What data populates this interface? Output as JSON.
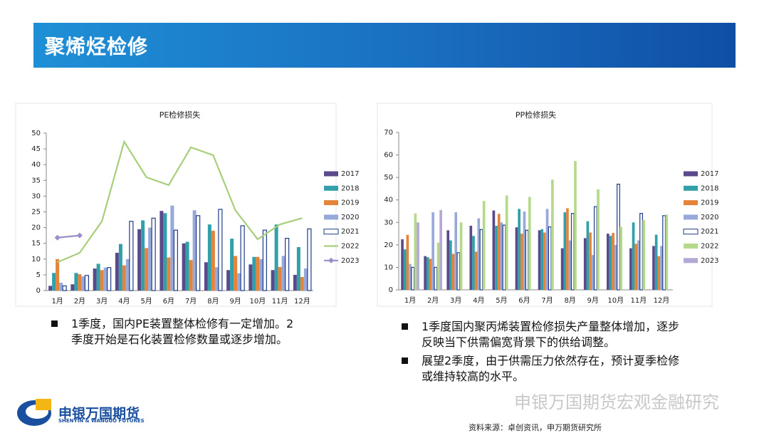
{
  "header": {
    "title": "聚烯烃检修"
  },
  "chart_data": [
    {
      "type": "bar",
      "title": "PE检修损失",
      "categories": [
        "1月",
        "2月",
        "3月",
        "4月",
        "5月",
        "6月",
        "7月",
        "8月",
        "9月",
        "10月",
        "11月",
        "12月"
      ],
      "ylim": [
        0,
        50
      ],
      "yticks": [
        0,
        5,
        10,
        15,
        20,
        25,
        30,
        35,
        40,
        45,
        50
      ],
      "legend": "right",
      "series": [
        {
          "name": "2017",
          "color": "#5b4a8b",
          "values": [
            1.5,
            2,
            7,
            12,
            19.5,
            25.3,
            15,
            9,
            6.5,
            8.3,
            6.5,
            5
          ]
        },
        {
          "name": "2018",
          "color": "#31a0a8",
          "values": [
            5.6,
            5.6,
            8.5,
            14.8,
            22.3,
            24.6,
            15.5,
            21,
            16.5,
            10.7,
            21,
            13.8
          ]
        },
        {
          "name": "2019",
          "color": "#e3843a",
          "values": [
            10,
            5.2,
            6.5,
            8,
            13.5,
            10.5,
            9.7,
            19,
            11,
            10.7,
            7.5,
            4.3
          ]
        },
        {
          "name": "2020",
          "color": "#98a9d9",
          "values": [
            2.5,
            4.5,
            7.3,
            10,
            20,
            27,
            25.5,
            7.4,
            5.5,
            10,
            11,
            7
          ]
        },
        {
          "name": "2021",
          "color": "#1f3c88",
          "fill": "#ffffff",
          "values": [
            1.5,
            4.8,
            7.3,
            22,
            23,
            19.2,
            23.8,
            25.8,
            20.6,
            19.2,
            16.6,
            19.6
          ]
        },
        {
          "name": "2022",
          "color": "#a7cf7a",
          "type": "line",
          "values": [
            9,
            12,
            22,
            47.3,
            36,
            33.5,
            45.5,
            43,
            25.5,
            16.3,
            21,
            23
          ]
        },
        {
          "name": "2023",
          "color": "#9b8ec7",
          "type": "line",
          "marker": "diamond",
          "values": [
            16.8,
            17.5,
            null,
            null,
            null,
            null,
            null,
            null,
            null,
            null,
            null,
            null
          ]
        }
      ]
    },
    {
      "type": "bar",
      "title": "PP检修损失",
      "categories": [
        "1月",
        "2月",
        "3月",
        "4月",
        "5月",
        "6月",
        "7月",
        "8月",
        "9月",
        "10月",
        "11月",
        "12月"
      ],
      "ylim": [
        0,
        70
      ],
      "yticks": [
        0,
        10,
        20,
        30,
        40,
        50,
        60,
        70
      ],
      "legend": "right",
      "series": [
        {
          "name": "2017",
          "color": "#5b4a8b",
          "values": [
            22.5,
            15,
            26.5,
            28.5,
            35.3,
            27.8,
            26.5,
            18.5,
            23,
            25,
            18.5,
            19.5
          ]
        },
        {
          "name": "2018",
          "color": "#31a0a8",
          "values": [
            18,
            14.5,
            22,
            24,
            28.5,
            36,
            27,
            34.5,
            30.5,
            24,
            30,
            24.5
          ]
        },
        {
          "name": "2019",
          "color": "#e3843a",
          "values": [
            24.5,
            13.8,
            16,
            17,
            33.8,
            25,
            25.5,
            36.3,
            25.5,
            25.3,
            20.5,
            15
          ]
        },
        {
          "name": "2020",
          "color": "#98a9d9",
          "values": [
            11.5,
            34.5,
            34.5,
            31.8,
            30,
            34.8,
            36,
            22,
            15.5,
            20,
            22,
            19.5
          ]
        },
        {
          "name": "2021",
          "color": "#1f3c88",
          "fill": "#ffffff",
          "values": [
            10,
            10,
            16.5,
            26.8,
            28.8,
            26.5,
            28,
            34,
            37,
            47,
            34,
            33
          ]
        },
        {
          "name": "2022",
          "color": "#b5d98a",
          "values": [
            34,
            21,
            30,
            39.5,
            42,
            41.3,
            49,
            57.3,
            44.7,
            28,
            31,
            33.5
          ]
        },
        {
          "name": "2023",
          "color": "#b3a8d6",
          "values": [
            30,
            35.5,
            null,
            null,
            null,
            null,
            null,
            null,
            null,
            null,
            null,
            null
          ]
        }
      ]
    }
  ],
  "notes_left": [
    "1季度，国内PE装置整体检修有一定增加。2季度开始是石化装置检修数量或逐步增加。"
  ],
  "notes_right": [
    "1季度国内聚丙烯装置检修损失产量整体增加，逐步反映当下供需偏宽背景下的供给调整。",
    "展望2季度，由于供需压力依然存在，预计夏季检修或维持较高的水平。"
  ],
  "source": "资料来源：卓创资讯，申万期货研究所",
  "logo": {
    "name": "申银万国期货",
    "english": "SHENYIN & WANGUO FUTURES"
  },
  "watermark": "申银万国期货宏观金融研究"
}
